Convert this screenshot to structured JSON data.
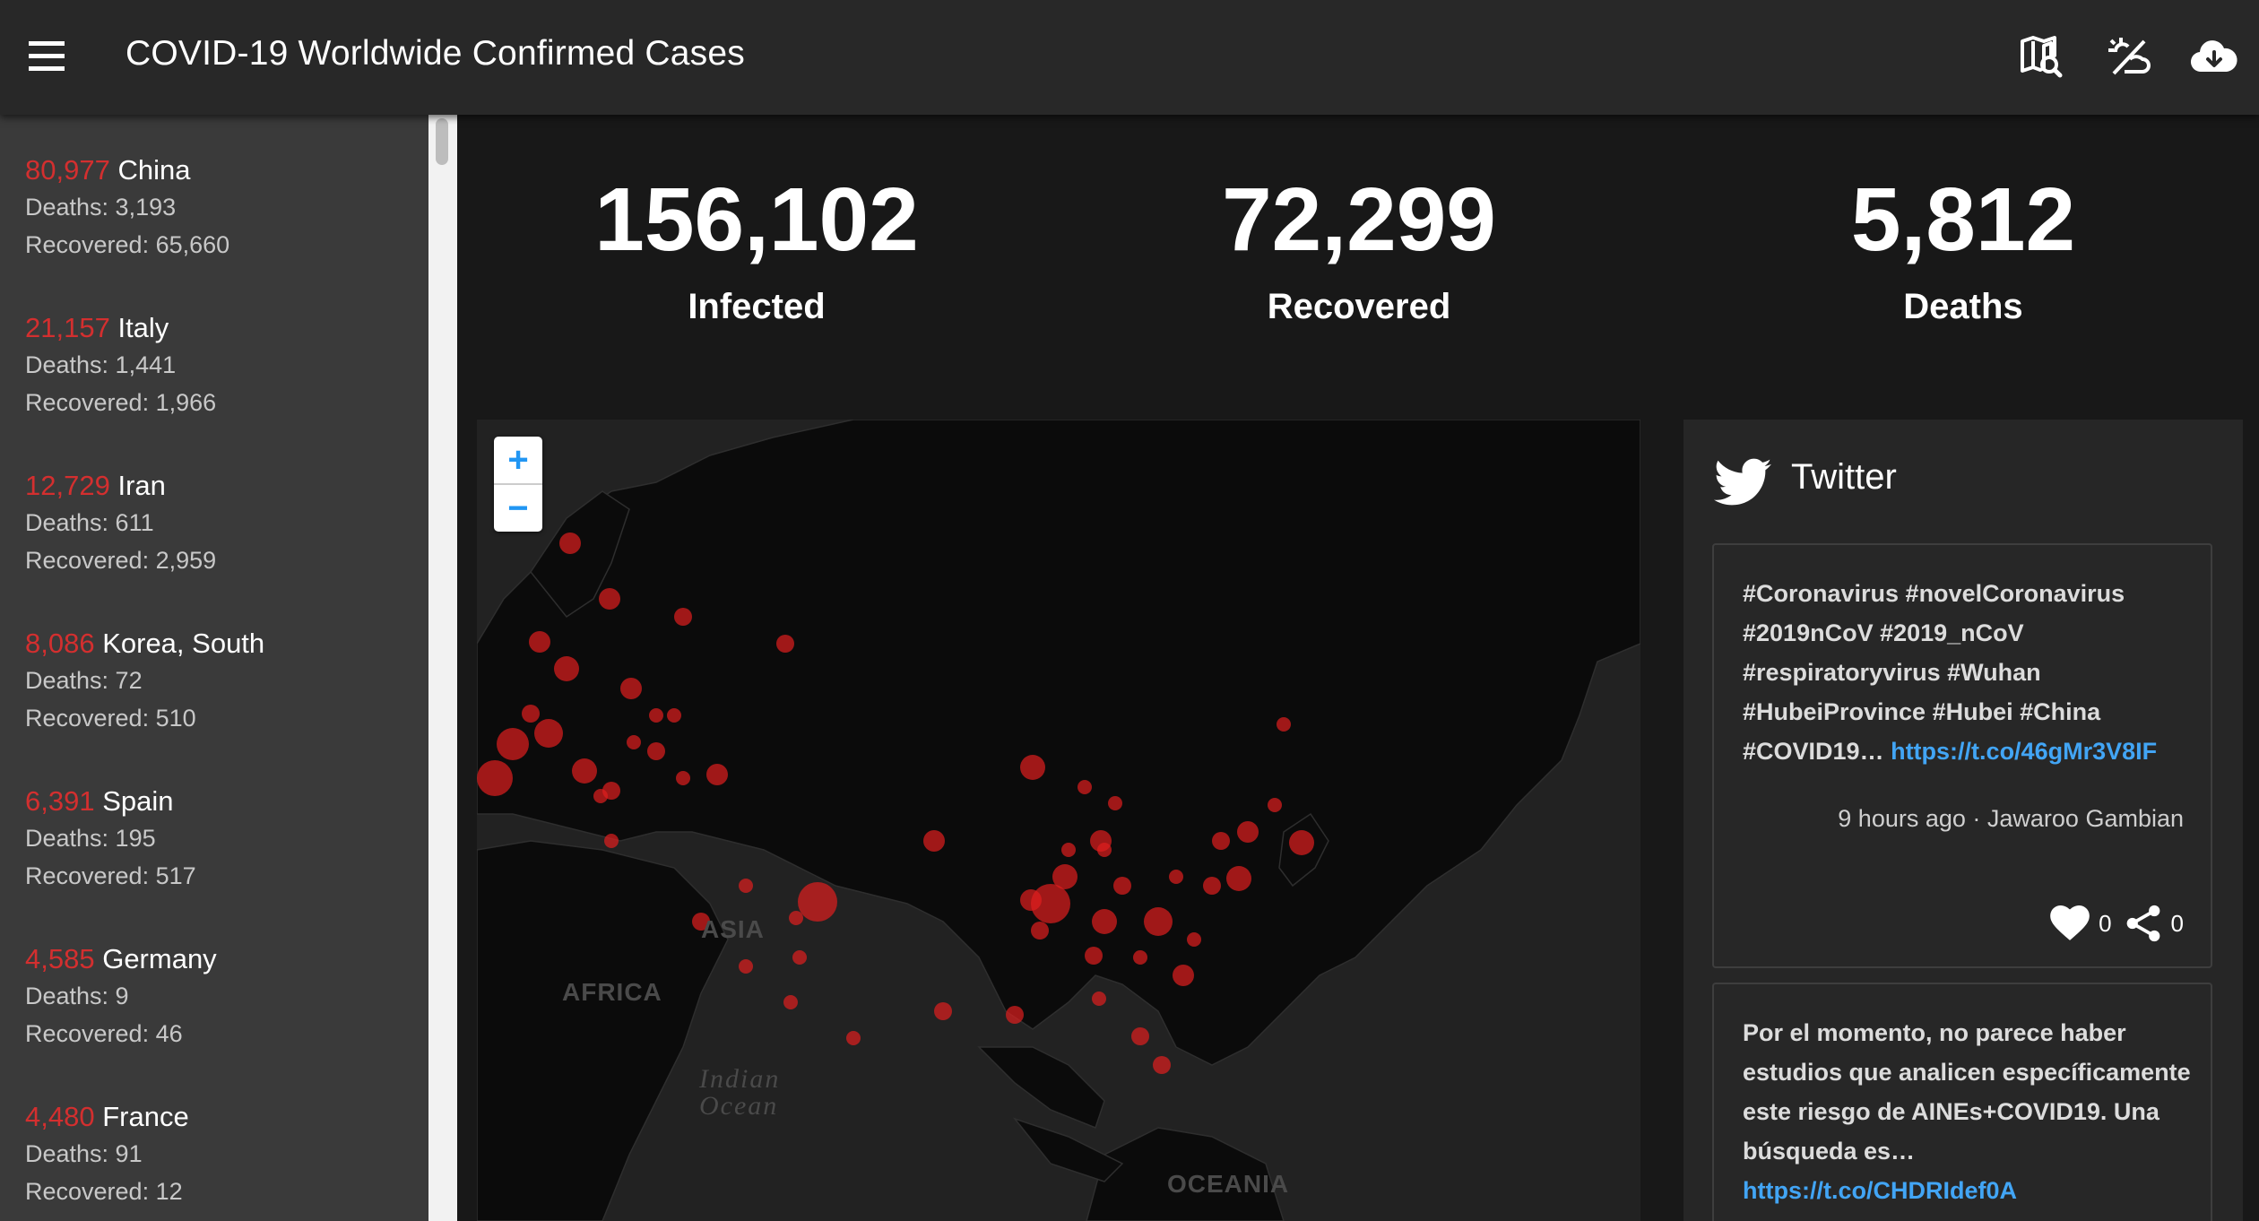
{
  "appbar": {
    "title": "COVID-19 Worldwide Confirmed Cases",
    "icons": [
      "menu-icon",
      "map-search-icon",
      "weather-cloud-sun-icon",
      "cloud-download-icon"
    ]
  },
  "sidebar": {
    "countries": [
      {
        "count": "80,977",
        "name": "China",
        "deaths": "Deaths: 3,193",
        "recovered": "Recovered: 65,660"
      },
      {
        "count": "21,157",
        "name": "Italy",
        "deaths": "Deaths: 1,441",
        "recovered": "Recovered: 1,966"
      },
      {
        "count": "12,729",
        "name": "Iran",
        "deaths": "Deaths: 611",
        "recovered": "Recovered: 2,959"
      },
      {
        "count": "8,086",
        "name": "Korea, South",
        "deaths": "Deaths: 72",
        "recovered": "Recovered: 510"
      },
      {
        "count": "6,391",
        "name": "Spain",
        "deaths": "Deaths: 195",
        "recovered": "Recovered: 517"
      },
      {
        "count": "4,585",
        "name": "Germany",
        "deaths": "Deaths: 9",
        "recovered": "Recovered: 46"
      },
      {
        "count": "4,480",
        "name": "France",
        "deaths": "Deaths: 91",
        "recovered": "Recovered: 12"
      }
    ]
  },
  "stats": {
    "infected": {
      "value": "156,102",
      "label": "Infected"
    },
    "recovered": {
      "value": "72,299",
      "label": "Recovered"
    },
    "deaths": {
      "value": "5,812",
      "label": "Deaths"
    }
  },
  "map": {
    "zoom_in": "+",
    "zoom_out": "−",
    "labels": {
      "asia": "ASIA",
      "africa": "AFRICA",
      "indian_ocean_1": "Indian",
      "indian_ocean_2": "Ocean",
      "oceania": "OCEANIA"
    },
    "colors": {
      "marker": "#e01e1e",
      "land": "#0b0b0b",
      "water": "#222222"
    }
  },
  "twitter": {
    "title": "Twitter",
    "tweets": [
      {
        "text": "#Coronavirus #novelCoronavirus #2019nCoV #2019_nCoV #respiratoryvirus #Wuhan #HubeiProvince #Hubei #China #COVID19…",
        "link": "https://t.co/46gMr3V8IF",
        "time": "9 hours ago · Jawaroo Gambian",
        "likes": "0",
        "shares": "0"
      },
      {
        "text": "Por el momento, no parece haber estudios que analicen específicamente este riesgo de AINEs+COVID19. Una búsqueda es…",
        "link": "https://t.co/CHDRIdef0A"
      }
    ]
  }
}
